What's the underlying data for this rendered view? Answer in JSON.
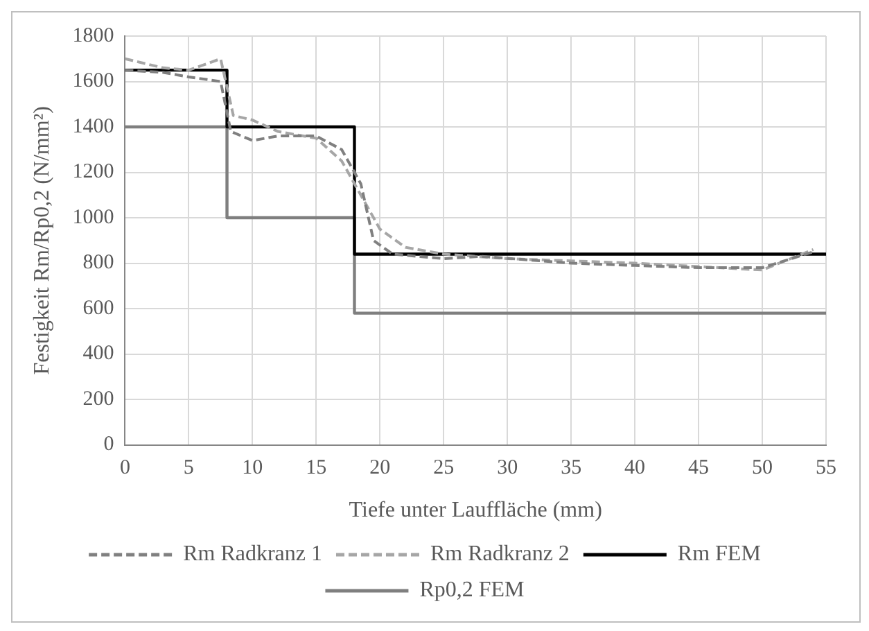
{
  "chart_data": {
    "type": "line",
    "xlabel": "Tiefe unter Lauffläche (mm)",
    "ylabel": "Festigkeit Rm/Rp0,2 (N/mm²)",
    "xlim": [
      0,
      55
    ],
    "xticks": [
      0,
      5,
      10,
      15,
      20,
      25,
      30,
      35,
      40,
      45,
      50,
      55
    ],
    "ylim": [
      0,
      1800
    ],
    "yticks": [
      0,
      200,
      400,
      600,
      800,
      1000,
      1200,
      1400,
      1600,
      1800
    ],
    "grid": true,
    "legend": "bottom",
    "marker": "none",
    "series": [
      {
        "name": "Rm Radkranz 1",
        "color": "#808080",
        "line_style": "dashed",
        "x": [
          0,
          3,
          5,
          7.5,
          8.3,
          10,
          12,
          15,
          17,
          18.5,
          19.5,
          21,
          25,
          28,
          35,
          40,
          45,
          50,
          54
        ],
        "values": [
          1650,
          1640,
          1620,
          1600,
          1380,
          1340,
          1360,
          1360,
          1300,
          1150,
          900,
          840,
          820,
          830,
          800,
          790,
          780,
          780,
          850
        ]
      },
      {
        "name": "Rm Radkranz 2",
        "color": "#a6a6a6",
        "line_style": "dashed",
        "x": [
          0,
          3,
          5,
          7.5,
          8.5,
          10,
          12,
          15,
          17,
          18.5,
          20,
          22,
          25,
          30,
          40,
          50,
          54
        ],
        "values": [
          1700,
          1660,
          1650,
          1700,
          1450,
          1430,
          1380,
          1350,
          1250,
          1100,
          950,
          870,
          840,
          820,
          800,
          770,
          860
        ]
      },
      {
        "name": "Rm FEM",
        "type": "step",
        "color": "#000000",
        "line_style": "solid",
        "x": [
          0,
          8,
          18,
          55
        ],
        "values": [
          1650,
          1400,
          840,
          840
        ]
      },
      {
        "name": "Rp0,2 FEM",
        "type": "step",
        "color": "#7f7f7f",
        "line_style": "solid",
        "x": [
          0,
          8,
          18,
          55
        ],
        "values": [
          1400,
          1000,
          580,
          580
        ]
      }
    ]
  }
}
